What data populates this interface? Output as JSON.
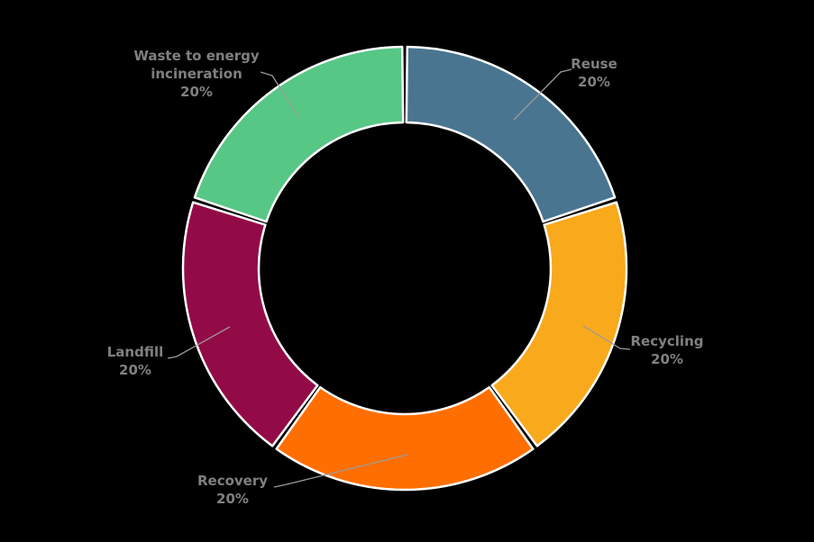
{
  "chart_data": {
    "type": "pie",
    "subtype": "donut",
    "title": "",
    "unit": "%",
    "total": 100,
    "segments": [
      {
        "label": "Reuse",
        "value": 20,
        "pct_label": "20%",
        "color": "#4A7590",
        "label_display": "Reuse\n20%"
      },
      {
        "label": "Recycling",
        "value": 20,
        "pct_label": "20%",
        "color": "#F8A91C",
        "label_display": "Recycling\n20%"
      },
      {
        "label": "Recovery",
        "value": 20,
        "pct_label": "20%",
        "color": "#FF6E00",
        "label_display": "Recovery\n20%"
      },
      {
        "label": "Landfill",
        "value": 20,
        "pct_label": "20%",
        "color": "#930B46",
        "label_display": "Landfill\n20%"
      },
      {
        "label": "Waste to energy incineration",
        "value": 20,
        "pct_label": "20%",
        "color": "#57C785",
        "label_display": "Waste to energy\nincineration\n20%"
      }
    ],
    "layout_hints": {
      "start_angle_deg": 0,
      "direction": "clockwise",
      "inner_radius_ratio": 0.66,
      "labels_position": "outside-with-leader-lines",
      "legend": "none",
      "background_color": "#000000",
      "label_text_color": "#808080",
      "leader_line_color": "#9B9B9B",
      "segment_outline_color": "#FFFFFF"
    }
  }
}
